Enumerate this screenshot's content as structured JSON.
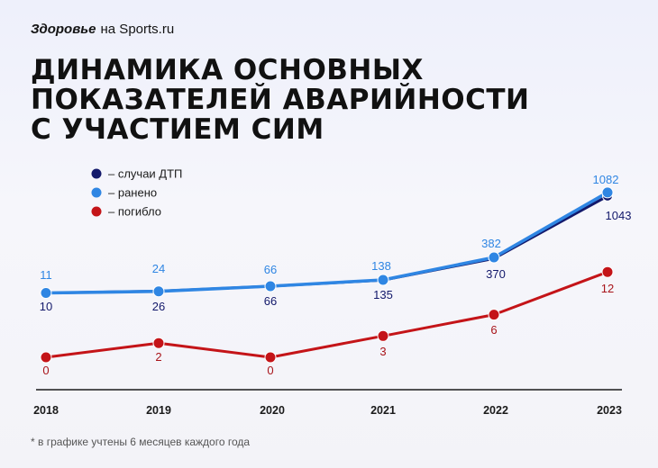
{
  "brand": {
    "name": "Здоровье",
    "suffix": "на Sports.ru"
  },
  "title_lines": [
    "ДИНАМИКА ОСНОВНЫХ",
    "ПОКАЗАТЕЛЕЙ АВАРИЙНОСТИ",
    "С УЧАСТИЕМ СИМ"
  ],
  "footnote": "* в графике учтены 6 месяцев каждого года",
  "chart_data": {
    "type": "line",
    "x": [
      "2018",
      "2019",
      "2020",
      "2021",
      "2022",
      "2023"
    ],
    "series": [
      {
        "name": "– случаи ДТП",
        "values": [
          10,
          26,
          66,
          135,
          370,
          1043
        ],
        "color": "#13196b"
      },
      {
        "name": "– ранено",
        "values": [
          11,
          24,
          66,
          138,
          382,
          1082
        ],
        "color": "#2f86e3"
      },
      {
        "name": "– погибло",
        "values": [
          0,
          2,
          0,
          3,
          6,
          12
        ],
        "color": "#c41418"
      }
    ],
    "legend_position": "top-left",
    "grid": false,
    "colors": {
      "label_blue": "#2f86e3",
      "label_dark": "#13196b",
      "label_red": "#a8141a"
    }
  }
}
